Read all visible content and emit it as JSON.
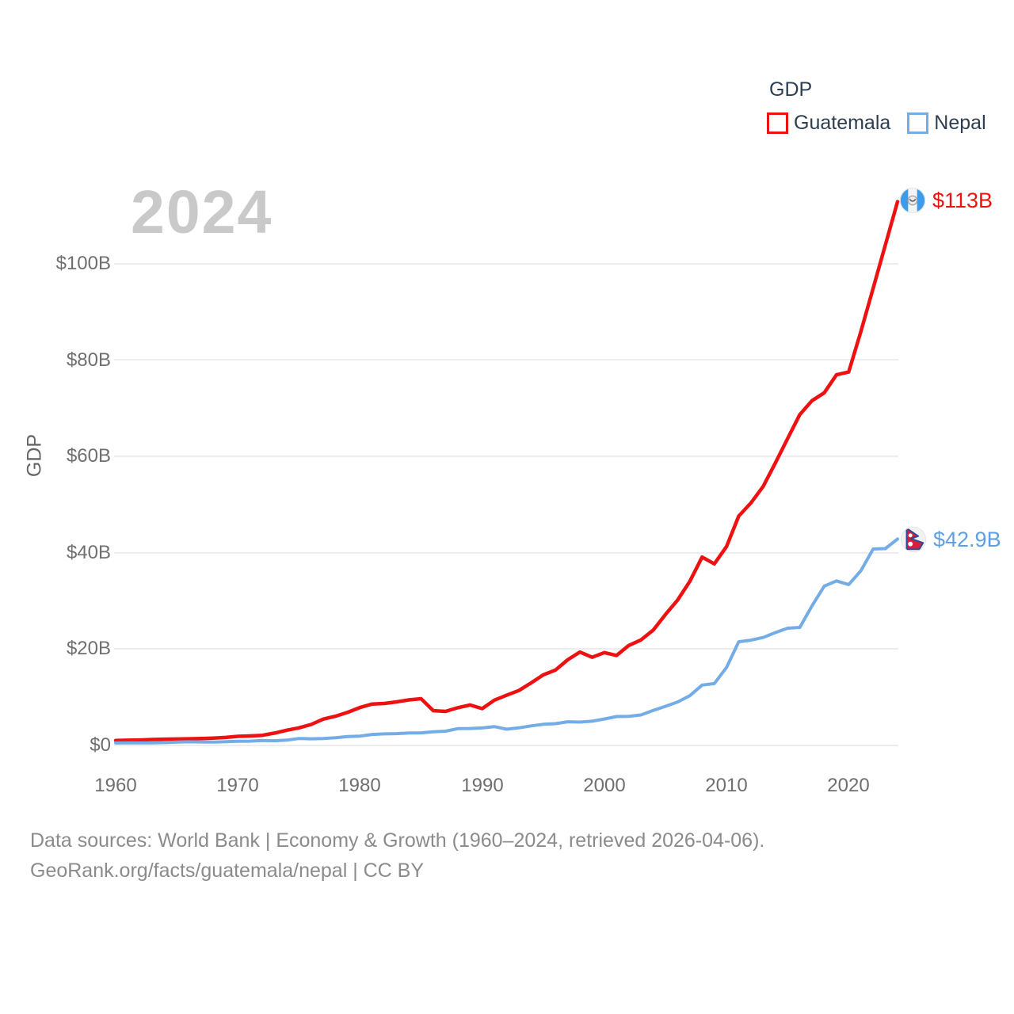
{
  "watermark": "2024",
  "legend": {
    "title": "GDP",
    "series": [
      {
        "label": "Guatemala",
        "color": "#ee1111"
      },
      {
        "label": "Nepal",
        "color": "#74ace6"
      }
    ]
  },
  "y_axis": {
    "title": "GDP",
    "ticks": [
      "$0",
      "$20B",
      "$40B",
      "$60B",
      "$80B",
      "$100B"
    ]
  },
  "x_axis": {
    "ticks": [
      "1960",
      "1970",
      "1980",
      "1990",
      "2000",
      "2010",
      "2020"
    ]
  },
  "end_labels": [
    {
      "series": "Guatemala",
      "value": "$113B",
      "flag_icon": "guatemala-flag-icon"
    },
    {
      "series": "Nepal",
      "value": "$42.9B",
      "flag_icon": "nepal-flag-icon"
    }
  ],
  "footer": {
    "line1": "Data sources: World Bank | Economy & Growth (1960–2024, retrieved 2026-04-06).",
    "line2": "GeoRank.org/facts/guatemala/nepal | CC BY"
  },
  "chart_data": {
    "type": "line",
    "title": "GDP",
    "ylabel": "GDP",
    "unit": "current US$ billions",
    "x_range": [
      1960,
      2024
    ],
    "ylim": [
      0,
      115
    ],
    "y_ticks_billions": [
      0,
      20,
      40,
      60,
      80,
      100
    ],
    "x_ticks": [
      1960,
      1970,
      1980,
      1990,
      2000,
      2010,
      2020
    ],
    "grid": "horizontal",
    "legend_position": "top-right",
    "x": [
      1960,
      1961,
      1962,
      1963,
      1964,
      1965,
      1966,
      1967,
      1968,
      1969,
      1970,
      1971,
      1972,
      1973,
      1974,
      1975,
      1976,
      1977,
      1978,
      1979,
      1980,
      1981,
      1982,
      1983,
      1984,
      1985,
      1986,
      1987,
      1988,
      1989,
      1990,
      1991,
      1992,
      1993,
      1994,
      1995,
      1996,
      1997,
      1998,
      1999,
      2000,
      2001,
      2002,
      2003,
      2004,
      2005,
      2006,
      2007,
      2008,
      2009,
      2010,
      2011,
      2012,
      2013,
      2014,
      2015,
      2016,
      2017,
      2018,
      2019,
      2020,
      2021,
      2022,
      2023,
      2024
    ],
    "series": [
      {
        "name": "Guatemala",
        "color": "#ee1111",
        "end_value_billions": 113,
        "end_label": "$113B",
        "values_billions": [
          1.04,
          1.08,
          1.14,
          1.24,
          1.3,
          1.33,
          1.39,
          1.45,
          1.53,
          1.66,
          1.9,
          1.98,
          2.1,
          2.57,
          3.16,
          3.65,
          4.37,
          5.48,
          6.07,
          6.9,
          7.88,
          8.61,
          8.72,
          9.05,
          9.47,
          9.72,
          7.23,
          7.08,
          7.84,
          8.41,
          7.65,
          9.41,
          10.44,
          11.4,
          12.98,
          14.66,
          15.67,
          17.79,
          19.4,
          18.32,
          19.29,
          18.7,
          20.78,
          21.92,
          23.97,
          27.21,
          30.23,
          34.11,
          39.14,
          37.73,
          41.34,
          47.65,
          50.39,
          53.85,
          58.72,
          63.77,
          68.76,
          71.64,
          73.28,
          77.02,
          77.6,
          86.0,
          95.0,
          104.0,
          113.0
        ]
      },
      {
        "name": "Nepal",
        "color": "#74ace6",
        "end_value_billions": 42.9,
        "end_label": "$42.9B",
        "values_billions": [
          0.51,
          0.54,
          0.55,
          0.52,
          0.6,
          0.69,
          0.76,
          0.73,
          0.71,
          0.77,
          0.87,
          0.89,
          1.02,
          0.97,
          1.1,
          1.45,
          1.39,
          1.45,
          1.6,
          1.86,
          1.95,
          2.28,
          2.4,
          2.45,
          2.58,
          2.62,
          2.85,
          2.96,
          3.49,
          3.52,
          3.63,
          3.92,
          3.38,
          3.66,
          4.07,
          4.4,
          4.52,
          4.92,
          4.86,
          5.03,
          5.49,
          6.01,
          6.05,
          6.33,
          7.27,
          8.13,
          9.04,
          10.33,
          12.55,
          12.85,
          16.2,
          21.55,
          21.87,
          22.44,
          23.45,
          24.36,
          24.52,
          29.0,
          33.11,
          34.19,
          33.43,
          36.29,
          40.83,
          40.91,
          42.9
        ]
      }
    ]
  }
}
